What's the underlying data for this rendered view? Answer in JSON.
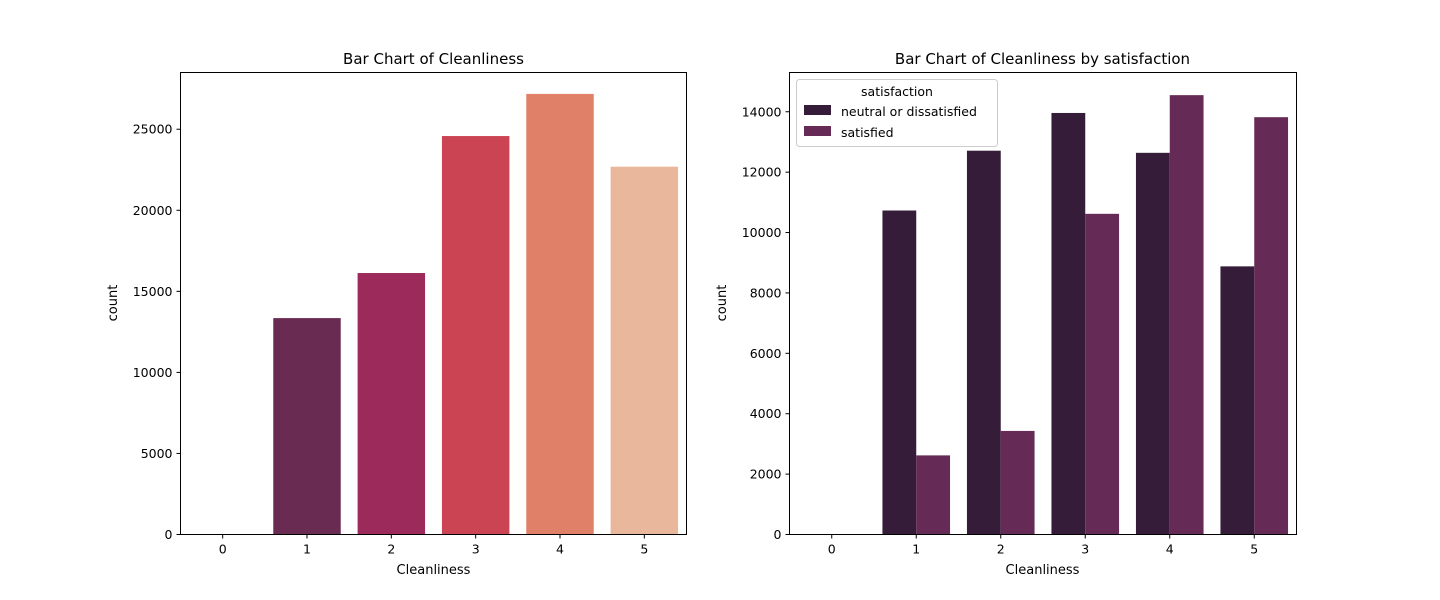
{
  "chart_data": [
    {
      "type": "bar",
      "title": "Bar Chart of Cleanliness",
      "xlabel": "Cleanliness",
      "ylabel": "count",
      "categories": [
        "0",
        "1",
        "2",
        "3",
        "4",
        "5"
      ],
      "values": [
        12,
        13350,
        16130,
        24580,
        27180,
        22690
      ],
      "colors": [
        "#4a1d4d",
        "#6a2b52",
        "#9c2a5a",
        "#cb4453",
        "#e08068",
        "#e9b79b"
      ],
      "ylim": [
        0,
        28500
      ],
      "yticks": [
        "0",
        "5000",
        "10000",
        "15000",
        "20000",
        "25000"
      ],
      "grid": false
    },
    {
      "type": "bar",
      "title": "Bar Chart of Cleanliness by satisfaction",
      "xlabel": "Cleanliness",
      "ylabel": "count",
      "categories": [
        "0",
        "1",
        "2",
        "3",
        "4",
        "5"
      ],
      "series": [
        {
          "name": "neutral or dissatisfied",
          "color": "#351d39",
          "values": [
            5,
            10730,
            12710,
            13960,
            12640,
            8880
          ]
        },
        {
          "name": "satisfied",
          "color": "#652a55",
          "values": [
            7,
            2620,
            3430,
            10620,
            14550,
            13820
          ]
        }
      ],
      "legend": {
        "title": "satisfaction",
        "position": "top-left"
      },
      "ylim": [
        0,
        15300
      ],
      "yticks": [
        "0",
        "2000",
        "4000",
        "6000",
        "8000",
        "10000",
        "12000",
        "14000"
      ],
      "grid": false
    }
  ]
}
